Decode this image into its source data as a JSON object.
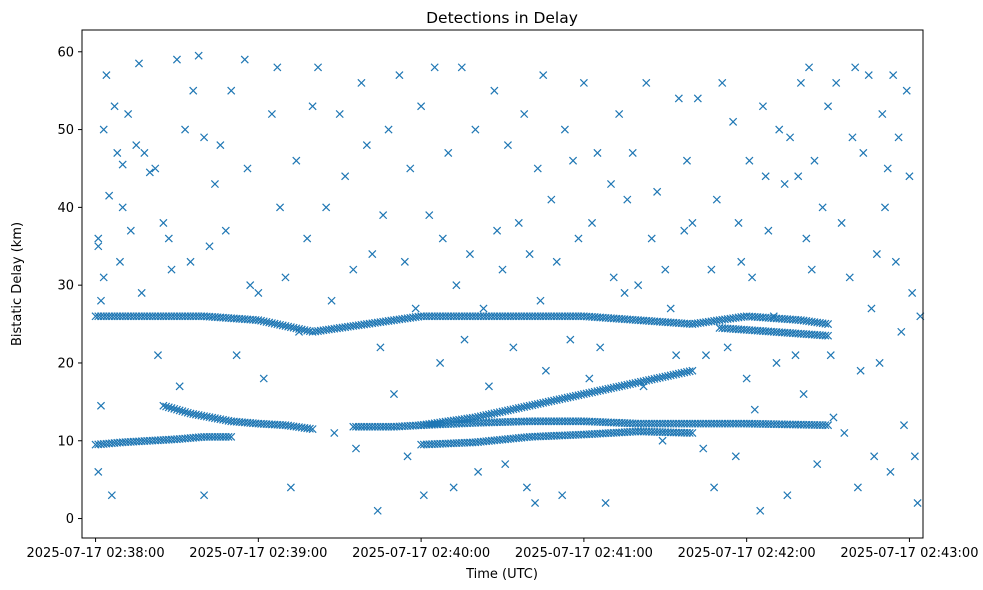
{
  "chart_data": {
    "type": "scatter",
    "title": "Detections in Delay",
    "xlabel": "Time (UTC)",
    "ylabel": "Bistatic Delay (km)",
    "x_unit": "seconds after 2025-07-17 02:38:00 UTC",
    "xlim": [
      -5,
      305
    ],
    "ylim": [
      -2.5,
      62.8
    ],
    "x_ticks": [
      {
        "value": 0,
        "label": "2025-07-17 02:38:00"
      },
      {
        "value": 60,
        "label": "2025-07-17 02:39:00"
      },
      {
        "value": 120,
        "label": "2025-07-17 02:40:00"
      },
      {
        "value": 180,
        "label": "2025-07-17 02:41:00"
      },
      {
        "value": 240,
        "label": "2025-07-17 02:42:00"
      },
      {
        "value": 300,
        "label": "2025-07-17 02:43:00"
      }
    ],
    "y_ticks": [
      {
        "value": 0,
        "label": "0"
      },
      {
        "value": 10,
        "label": "10"
      },
      {
        "value": 20,
        "label": "20"
      },
      {
        "value": 30,
        "label": "30"
      },
      {
        "value": 40,
        "label": "40"
      },
      {
        "value": 50,
        "label": "50"
      },
      {
        "value": 60,
        "label": "60"
      }
    ],
    "marker": "x",
    "color": "#1f77b4",
    "grid": false,
    "legend": "none",
    "tracks": [
      {
        "x": [
          [
            0,
            26
          ],
          [
            20,
            26
          ],
          [
            40,
            26
          ],
          [
            60,
            25.5
          ],
          [
            80,
            24
          ],
          [
            100,
            25
          ],
          [
            110,
            25.5
          ],
          [
            120,
            26
          ],
          [
            140,
            26
          ],
          [
            160,
            26
          ],
          [
            180,
            26
          ],
          [
            200,
            25.5
          ],
          [
            220,
            25
          ],
          [
            240,
            26
          ],
          [
            260,
            25.5
          ],
          [
            270,
            25
          ]
        ]
      },
      {
        "x": [
          [
            0,
            9.5
          ],
          [
            10,
            9.8
          ],
          [
            20,
            10
          ],
          [
            30,
            10.2
          ],
          [
            40,
            10.5
          ],
          [
            50,
            10.5
          ]
        ]
      },
      {
        "x": [
          [
            25,
            14.5
          ],
          [
            35,
            13.5
          ],
          [
            50,
            12.5
          ],
          [
            60,
            12.2
          ],
          [
            70,
            12
          ],
          [
            80,
            11.5
          ]
        ]
      },
      {
        "x": [
          [
            95,
            11.8
          ],
          [
            110,
            11.8
          ],
          [
            120,
            12
          ],
          [
            140,
            12.3
          ],
          [
            160,
            12.5
          ],
          [
            180,
            12.5
          ],
          [
            200,
            12.2
          ],
          [
            240,
            12.2
          ],
          [
            270,
            12
          ]
        ]
      },
      {
        "x": [
          [
            120,
            9.5
          ],
          [
            140,
            9.8
          ],
          [
            160,
            10.5
          ],
          [
            180,
            10.8
          ],
          [
            200,
            11.2
          ],
          [
            220,
            11
          ]
        ]
      },
      {
        "x": [
          [
            120,
            12
          ],
          [
            140,
            13
          ],
          [
            160,
            14.5
          ],
          [
            180,
            16
          ],
          [
            200,
            17.5
          ],
          [
            220,
            19
          ]
        ]
      },
      {
        "x": [
          [
            230,
            24.5
          ],
          [
            250,
            24
          ],
          [
            270,
            23.5
          ]
        ]
      }
    ],
    "points": [
      [
        1,
        35
      ],
      [
        1,
        36
      ],
      [
        1,
        6
      ],
      [
        2,
        14.5
      ],
      [
        2,
        28
      ],
      [
        3,
        31
      ],
      [
        4,
        57
      ],
      [
        3,
        50
      ],
      [
        5,
        41.5
      ],
      [
        7,
        53
      ],
      [
        8,
        47
      ],
      [
        6,
        3
      ],
      [
        9,
        33
      ],
      [
        10,
        40
      ],
      [
        10,
        45.5
      ],
      [
        12,
        52
      ],
      [
        13,
        37
      ],
      [
        15,
        48
      ],
      [
        16,
        58.5
      ],
      [
        17,
        29
      ],
      [
        18,
        47
      ],
      [
        20,
        44.5
      ],
      [
        22,
        45
      ],
      [
        23,
        21
      ],
      [
        25,
        38
      ],
      [
        27,
        36
      ],
      [
        28,
        32
      ],
      [
        30,
        59
      ],
      [
        31,
        17
      ],
      [
        33,
        50
      ],
      [
        35,
        33
      ],
      [
        36,
        55
      ],
      [
        38,
        59.5
      ],
      [
        40,
        49
      ],
      [
        40,
        3
      ],
      [
        42,
        35
      ],
      [
        44,
        43
      ],
      [
        46,
        48
      ],
      [
        48,
        37
      ],
      [
        50,
        55
      ],
      [
        52,
        21
      ],
      [
        55,
        59
      ],
      [
        56,
        45
      ],
      [
        57,
        30
      ],
      [
        60,
        29
      ],
      [
        62,
        18
      ],
      [
        65,
        52
      ],
      [
        67,
        58
      ],
      [
        68,
        40
      ],
      [
        70,
        31
      ],
      [
        72,
        4
      ],
      [
        74,
        46
      ],
      [
        75,
        24
      ],
      [
        78,
        36
      ],
      [
        80,
        53
      ],
      [
        82,
        58
      ],
      [
        85,
        40
      ],
      [
        87,
        28
      ],
      [
        88,
        11
      ],
      [
        90,
        52
      ],
      [
        92,
        44
      ],
      [
        95,
        32
      ],
      [
        96,
        9
      ],
      [
        98,
        56
      ],
      [
        100,
        48
      ],
      [
        102,
        34
      ],
      [
        104,
        1
      ],
      [
        105,
        22
      ],
      [
        106,
        39
      ],
      [
        108,
        50
      ],
      [
        110,
        16
      ],
      [
        112,
        57
      ],
      [
        114,
        33
      ],
      [
        115,
        8
      ],
      [
        116,
        45
      ],
      [
        118,
        27
      ],
      [
        120,
        53
      ],
      [
        121,
        3
      ],
      [
        123,
        39
      ],
      [
        125,
        58
      ],
      [
        127,
        20
      ],
      [
        128,
        36
      ],
      [
        130,
        47
      ],
      [
        132,
        4
      ],
      [
        133,
        30
      ],
      [
        135,
        58
      ],
      [
        136,
        23
      ],
      [
        138,
        34
      ],
      [
        140,
        50
      ],
      [
        141,
        6
      ],
      [
        143,
        27
      ],
      [
        145,
        17
      ],
      [
        147,
        55
      ],
      [
        148,
        37
      ],
      [
        150,
        32
      ],
      [
        151,
        7
      ],
      [
        152,
        48
      ],
      [
        154,
        22
      ],
      [
        156,
        38
      ],
      [
        158,
        52
      ],
      [
        159,
        4
      ],
      [
        160,
        34
      ],
      [
        162,
        2
      ],
      [
        163,
        45
      ],
      [
        164,
        28
      ],
      [
        165,
        57
      ],
      [
        166,
        19
      ],
      [
        168,
        41
      ],
      [
        170,
        33
      ],
      [
        172,
        3
      ],
      [
        173,
        50
      ],
      [
        175,
        23
      ],
      [
        176,
        46
      ],
      [
        178,
        36
      ],
      [
        180,
        56
      ],
      [
        182,
        18
      ],
      [
        183,
        38
      ],
      [
        185,
        47
      ],
      [
        186,
        22
      ],
      [
        188,
        2
      ],
      [
        190,
        43
      ],
      [
        191,
        31
      ],
      [
        193,
        52
      ],
      [
        195,
        29
      ],
      [
        196,
        41
      ],
      [
        198,
        47
      ],
      [
        200,
        30
      ],
      [
        202,
        17
      ],
      [
        203,
        56
      ],
      [
        205,
        36
      ],
      [
        207,
        42
      ],
      [
        209,
        10
      ],
      [
        210,
        32
      ],
      [
        212,
        27
      ],
      [
        214,
        21
      ],
      [
        215,
        54
      ],
      [
        217,
        37
      ],
      [
        218,
        46
      ],
      [
        220,
        38
      ],
      [
        222,
        54
      ],
      [
        224,
        9
      ],
      [
        225,
        21
      ],
      [
        227,
        32
      ],
      [
        228,
        4
      ],
      [
        229,
        41
      ],
      [
        231,
        56
      ],
      [
        233,
        22
      ],
      [
        235,
        51
      ],
      [
        236,
        8
      ],
      [
        237,
        38
      ],
      [
        238,
        33
      ],
      [
        240,
        18
      ],
      [
        241,
        46
      ],
      [
        242,
        31
      ],
      [
        243,
        14
      ],
      [
        245,
        1
      ],
      [
        246,
        53
      ],
      [
        247,
        44
      ],
      [
        248,
        37
      ],
      [
        250,
        26
      ],
      [
        251,
        20
      ],
      [
        252,
        50
      ],
      [
        254,
        43
      ],
      [
        255,
        3
      ],
      [
        256,
        49
      ],
      [
        258,
        21
      ],
      [
        259,
        44
      ],
      [
        260,
        56
      ],
      [
        261,
        16
      ],
      [
        262,
        36
      ],
      [
        263,
        58
      ],
      [
        264,
        32
      ],
      [
        265,
        46
      ],
      [
        266,
        7
      ],
      [
        268,
        40
      ],
      [
        270,
        53
      ],
      [
        271,
        21
      ],
      [
        272,
        13
      ],
      [
        273,
        56
      ],
      [
        275,
        38
      ],
      [
        276,
        11
      ],
      [
        278,
        31
      ],
      [
        279,
        49
      ],
      [
        280,
        58
      ],
      [
        281,
        4
      ],
      [
        282,
        19
      ],
      [
        283,
        47
      ],
      [
        285,
        57
      ],
      [
        286,
        27
      ],
      [
        287,
        8
      ],
      [
        288,
        34
      ],
      [
        289,
        20
      ],
      [
        290,
        52
      ],
      [
        291,
        40
      ],
      [
        292,
        45
      ],
      [
        293,
        6
      ],
      [
        294,
        57
      ],
      [
        295,
        33
      ],
      [
        296,
        49
      ],
      [
        297,
        24
      ],
      [
        298,
        12
      ],
      [
        299,
        55
      ],
      [
        300,
        44
      ],
      [
        301,
        29
      ],
      [
        302,
        8
      ],
      [
        303,
        2
      ],
      [
        304,
        26
      ]
    ]
  }
}
